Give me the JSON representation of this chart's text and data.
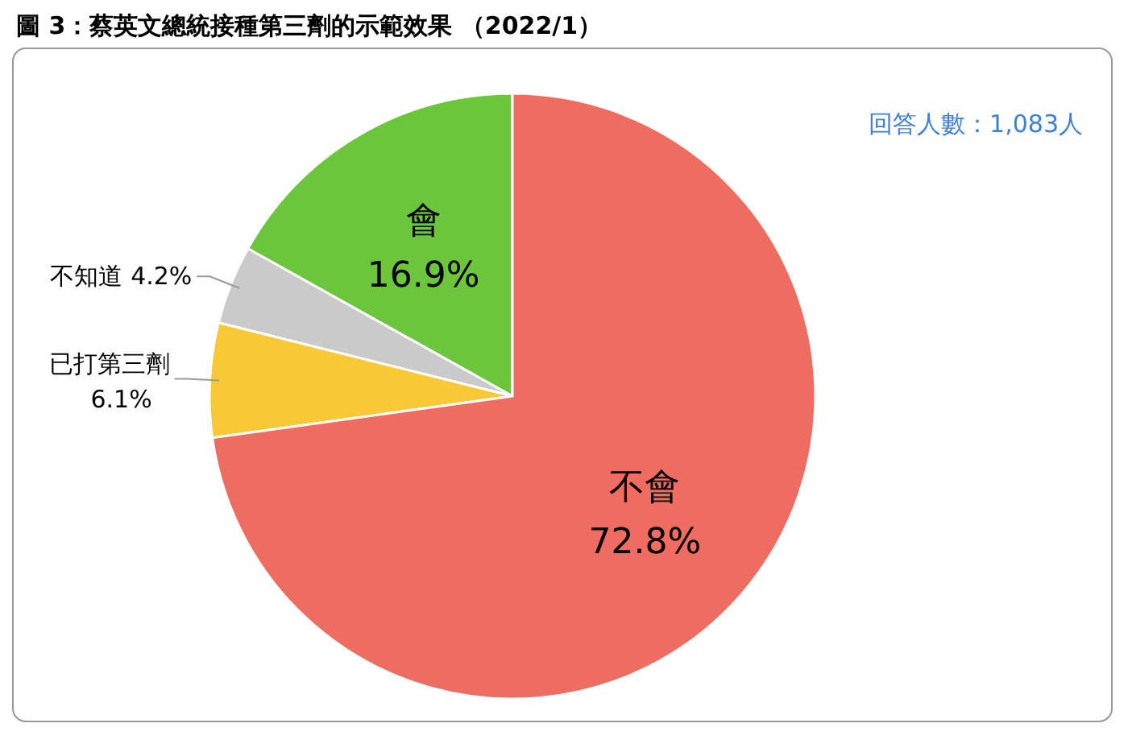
{
  "chart_data": {
    "type": "pie",
    "title": "圖 3：蔡英文總統接種第三劑的示範效果 （2022/1）",
    "categories": [
      "會",
      "不知道",
      "已打第三劑",
      "不會"
    ],
    "values": [
      16.9,
      4.2,
      6.1,
      72.8
    ],
    "colors": [
      "#6cc63c",
      "#cacaca",
      "#f8c837",
      "#ee6c60"
    ],
    "value_labels": [
      "16.9%",
      "4.2%",
      "6.1%",
      "72.8%"
    ],
    "annotations": [
      "回答人數：1,083人"
    ]
  }
}
